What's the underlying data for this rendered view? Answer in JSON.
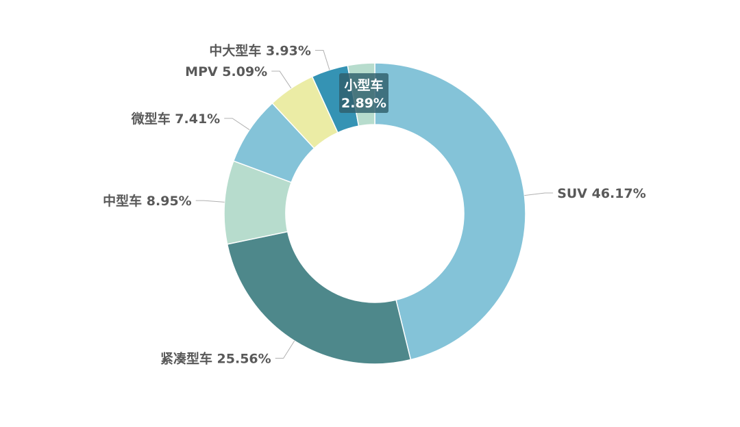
{
  "chart_data": {
    "type": "pie",
    "variant": "donut",
    "start": "top, clockwise",
    "labels_outside": true,
    "slices": [
      {
        "label": "SUV",
        "value": 46.17,
        "value_text": "46.17%",
        "color": "#84c3d8",
        "label_position": "outside"
      },
      {
        "label": "紧凑型车",
        "value": 25.56,
        "value_text": "25.56%",
        "color": "#4e888b",
        "label_position": "outside"
      },
      {
        "label": "中型车",
        "value": 8.95,
        "value_text": "8.95%",
        "color": "#b7dccd",
        "label_position": "outside"
      },
      {
        "label": "微型车",
        "value": 7.41,
        "value_text": "7.41%",
        "color": "#84c3d8",
        "label_position": "outside"
      },
      {
        "label": "MPV",
        "value": 5.09,
        "value_text": "5.09%",
        "color": "#ebeca5",
        "label_position": "outside"
      },
      {
        "label": "中大型车",
        "value": 3.93,
        "value_text": "3.93%",
        "color": "#3593b4",
        "label_position": "outside"
      },
      {
        "label": "小型车",
        "value": 2.89,
        "value_text": "2.89%",
        "color": "#b7dccd",
        "label_position": "inside-tooltip"
      }
    ]
  }
}
